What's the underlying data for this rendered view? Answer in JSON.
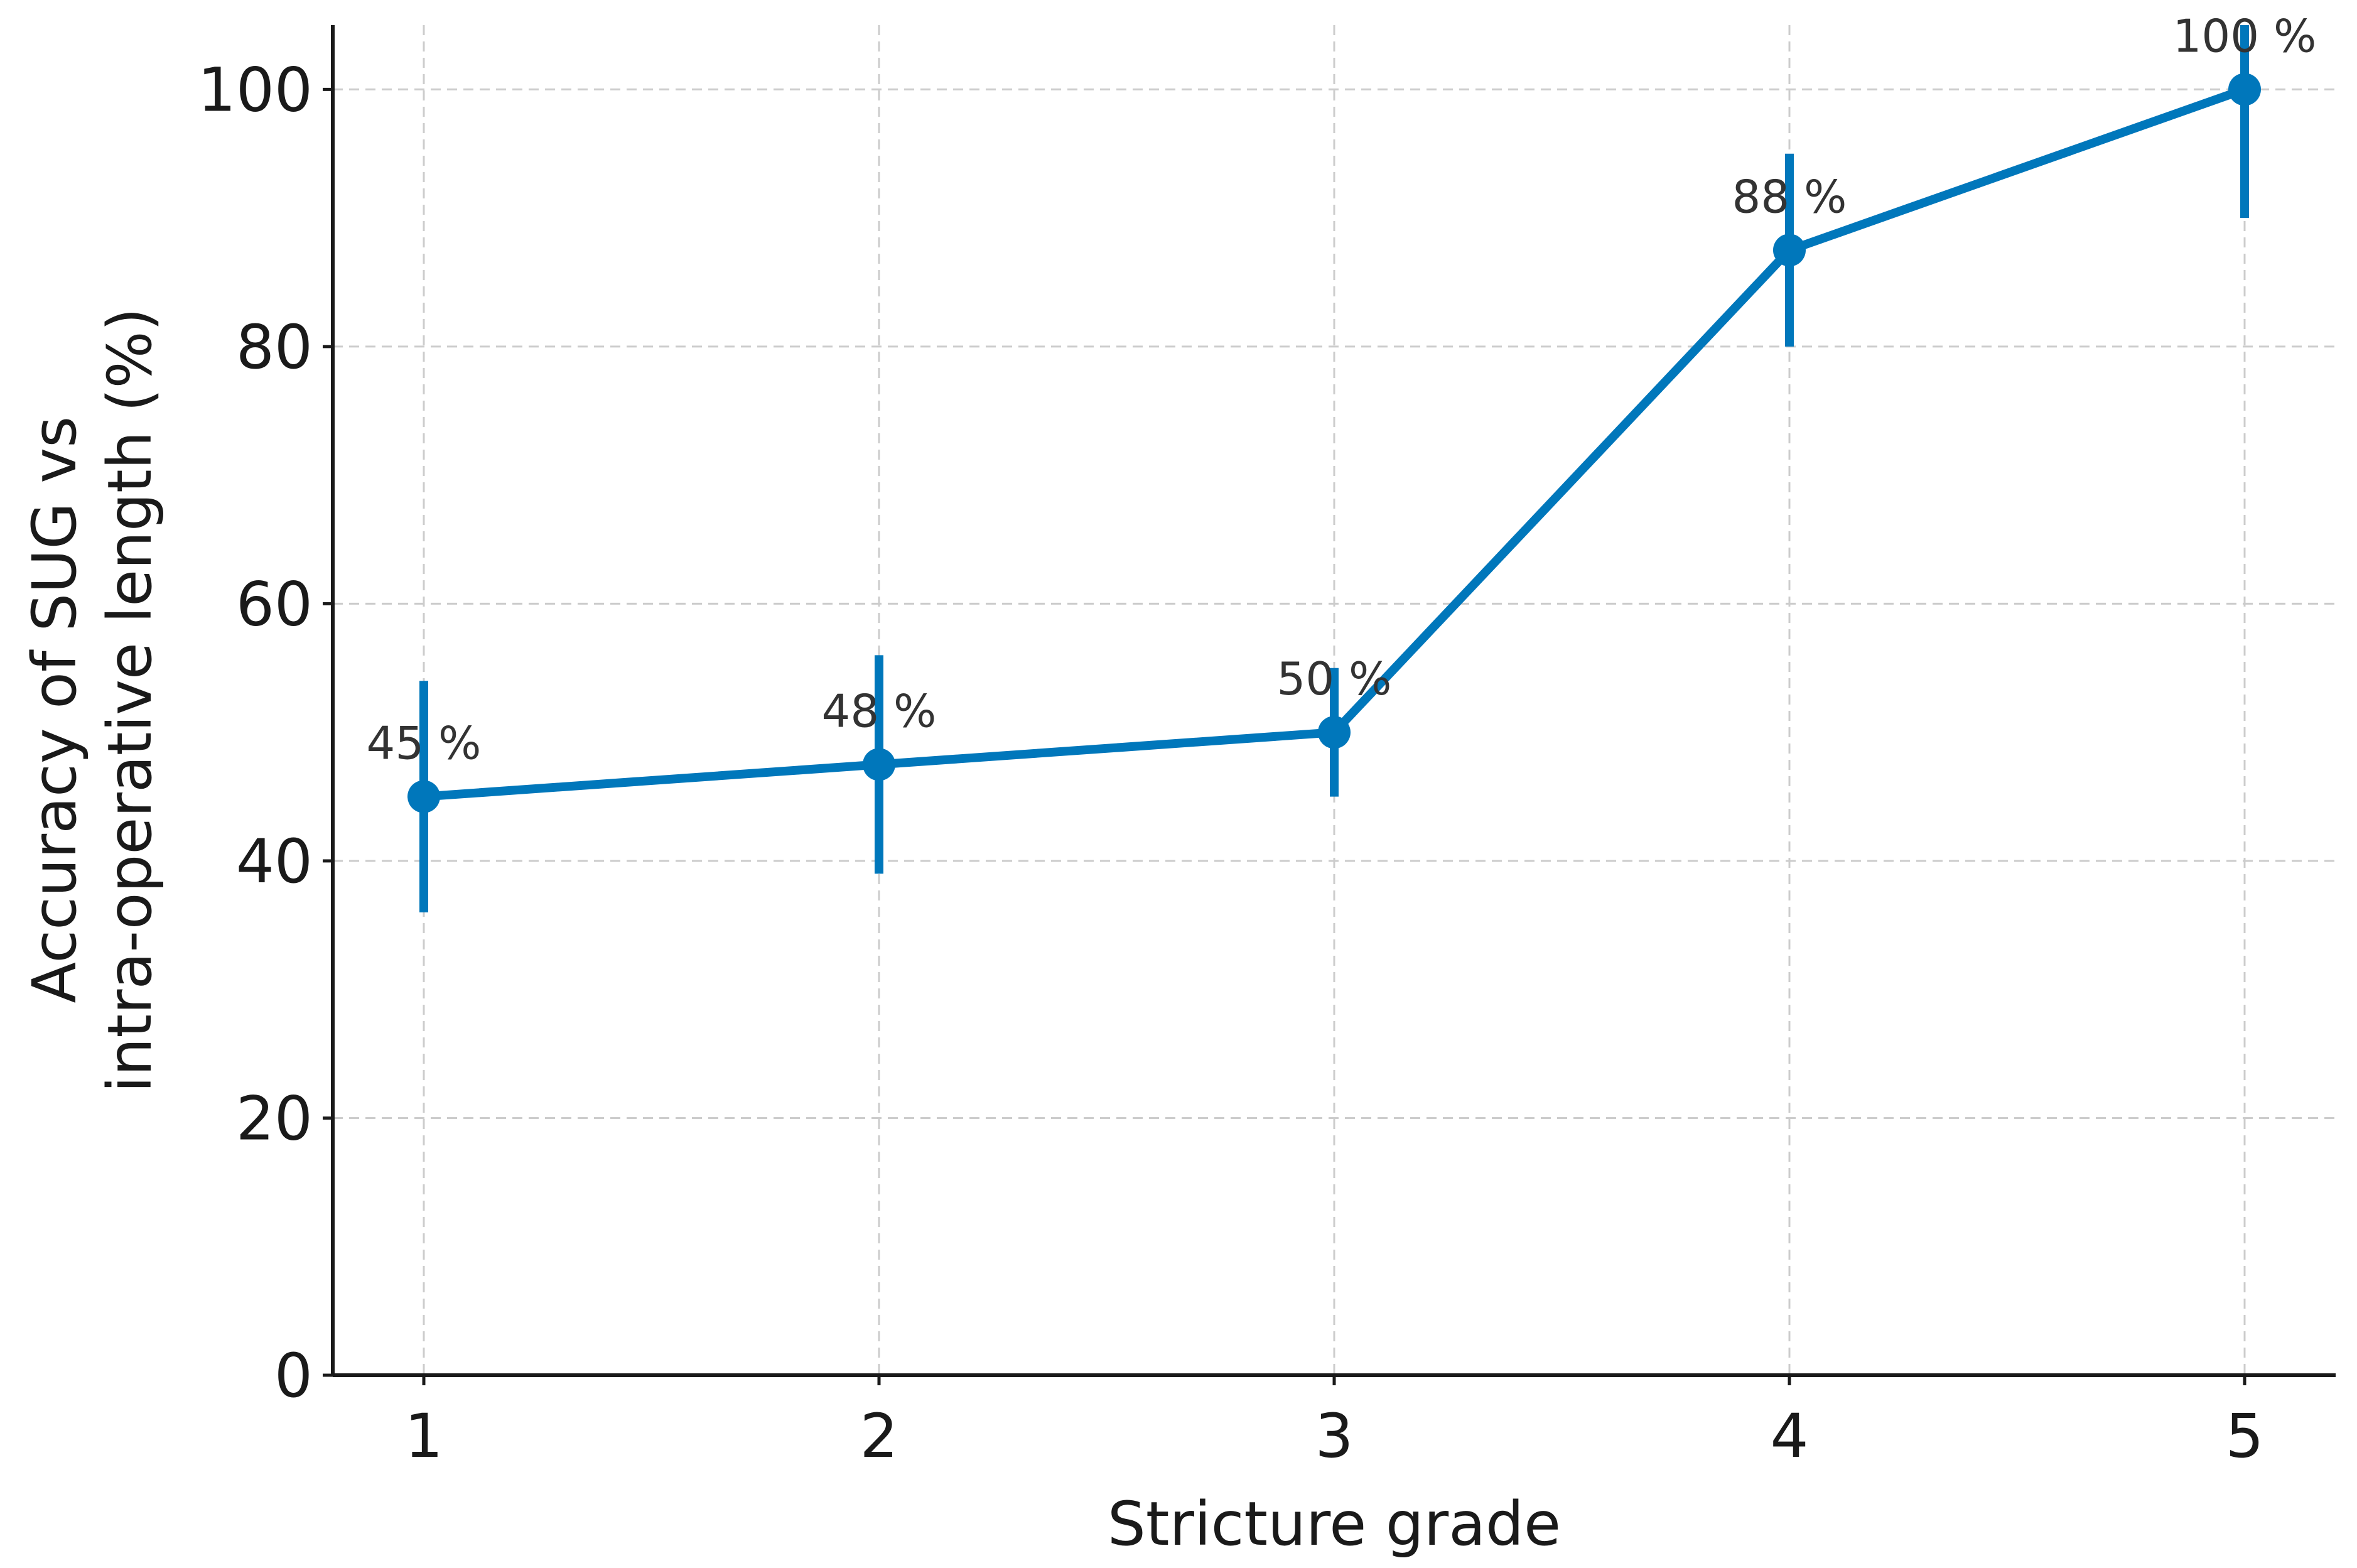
{
  "chart_data": {
    "type": "line",
    "x": [
      1,
      2,
      3,
      4,
      5
    ],
    "series": [
      {
        "values": [
          45,
          47.5,
          50,
          87.5,
          100
        ],
        "error_low": [
          36,
          39,
          45,
          80,
          90
        ],
        "error_high": [
          54,
          56,
          55,
          95,
          105
        ],
        "data_labels": [
          "45 %",
          "48 %",
          "50 %",
          "88 %",
          "100 %"
        ],
        "color": "#0077bb"
      }
    ],
    "xlabel": "Stricture grade",
    "ylabel_lines": [
      "Accuracy of SUG vs",
      "intra-operative length (%)"
    ],
    "xlim": [
      0.8,
      5.2
    ],
    "ylim": [
      0,
      105
    ],
    "x_ticks": [
      1,
      2,
      3,
      4,
      5
    ],
    "x_tick_labels": [
      "1",
      "2",
      "3",
      "4",
      "5"
    ],
    "y_ticks": [
      0,
      20,
      40,
      60,
      80,
      100
    ],
    "y_tick_labels": [
      "0",
      "20",
      "40",
      "60",
      "80",
      "100"
    ],
    "grid": true,
    "grid_color": "#cccccc",
    "axis_color": "#1a1a1a"
  }
}
